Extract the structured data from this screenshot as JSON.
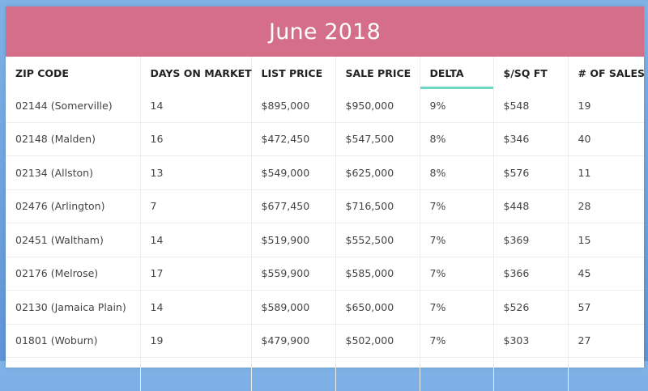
{
  "title": "June 2018",
  "colors": {
    "title_bar": "#d46e89",
    "active_column_accent": "#6fd6c1",
    "background": "#6a9fde"
  },
  "columns": [
    {
      "label": "ZIP CODE"
    },
    {
      "label": "DAYS ON MARKET"
    },
    {
      "label": "LIST PRICE"
    },
    {
      "label": "SALE PRICE"
    },
    {
      "label": "DELTA",
      "active": true
    },
    {
      "label": "$/SQ FT"
    },
    {
      "label": "# OF SALES"
    }
  ],
  "rows": [
    [
      "02144 (Somerville)",
      "14",
      "$895,000",
      "$950,000",
      "9%",
      "$548",
      "19"
    ],
    [
      "02148 (Malden)",
      "16",
      "$472,450",
      "$547,500",
      "8%",
      "$346",
      "40"
    ],
    [
      "02134 (Allston)",
      "13",
      "$549,000",
      "$625,000",
      "8%",
      "$576",
      "11"
    ],
    [
      "02476 (Arlington)",
      "7",
      "$677,450",
      "$716,500",
      "7%",
      "$448",
      "28"
    ],
    [
      "02451 (Waltham)",
      "14",
      "$519,900",
      "$552,500",
      "7%",
      "$369",
      "15"
    ],
    [
      "02176 (Melrose)",
      "17",
      "$559,900",
      "$585,000",
      "7%",
      "$366",
      "45"
    ],
    [
      "02130 (Jamaica Plain)",
      "14",
      "$589,000",
      "$650,000",
      "7%",
      "$526",
      "57"
    ],
    [
      "01801 (Woburn)",
      "19",
      "$479,900",
      "$502,000",
      "7%",
      "$303",
      "27"
    ],
    [
      "",
      "",
      "",
      "",
      "",
      "",
      ""
    ]
  ]
}
